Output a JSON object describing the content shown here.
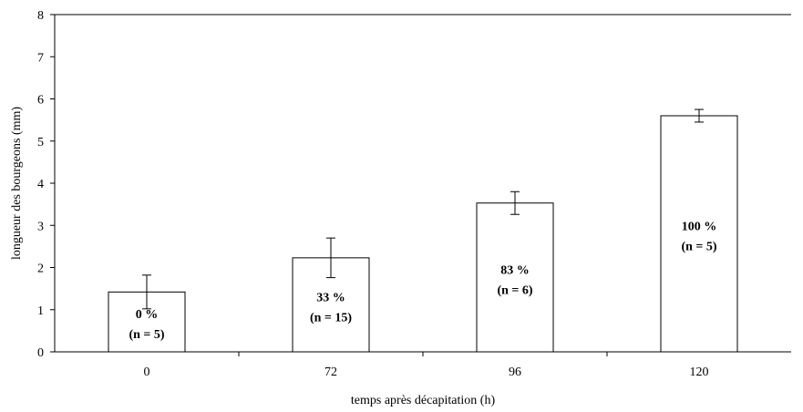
{
  "chart_data": {
    "type": "bar",
    "title": "",
    "xlabel": "temps après décapitation (h)",
    "ylabel": "longueur des bourgeons (mm)",
    "categories": [
      "0",
      "72",
      "96",
      "120"
    ],
    "values": [
      1.42,
      2.23,
      3.53,
      5.6
    ],
    "error": [
      0.4,
      0.47,
      0.27,
      0.15
    ],
    "bar_labels": [
      {
        "percent": "0 %",
        "n": "(n = 5)"
      },
      {
        "percent": "33 %",
        "n": "(n = 15)"
      },
      {
        "percent": "83 %",
        "n": "(n = 6)"
      },
      {
        "percent": "100 %",
        "n": "(n = 5)"
      }
    ],
    "yticks": [
      "0",
      "1",
      "2",
      "3",
      "4",
      "5",
      "6",
      "7",
      "8"
    ],
    "ylim": [
      0,
      8
    ],
    "grid": false,
    "legend": "none",
    "bar_color": "#ffffff",
    "line_color": "#000000"
  }
}
